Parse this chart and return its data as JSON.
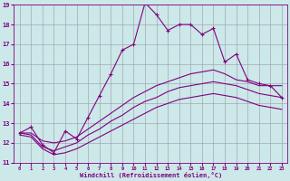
{
  "xlabel": "Windchill (Refroidissement éolien,°C)",
  "background_color": "#cce8e8",
  "line_color": "#800080",
  "grid_color": "#9999aa",
  "xlim": [
    -0.5,
    23.5
  ],
  "ylim": [
    11,
    19
  ],
  "yticks": [
    11,
    12,
    13,
    14,
    15,
    16,
    17,
    18,
    19
  ],
  "xticks": [
    0,
    1,
    2,
    3,
    4,
    5,
    6,
    7,
    8,
    9,
    10,
    11,
    12,
    13,
    14,
    15,
    16,
    17,
    18,
    19,
    20,
    21,
    22,
    23
  ],
  "line1_x": [
    0,
    1,
    2,
    3,
    4,
    5,
    6,
    7,
    8,
    9,
    10,
    11,
    12,
    13,
    14,
    15,
    16,
    17,
    18,
    19,
    20,
    21,
    22,
    23
  ],
  "line1_y": [
    12.5,
    12.8,
    11.9,
    11.5,
    12.6,
    12.2,
    13.3,
    14.4,
    15.5,
    16.7,
    17.0,
    19.1,
    18.5,
    17.7,
    18.0,
    18.0,
    17.5,
    17.8,
    16.1,
    16.5,
    15.2,
    15.0,
    14.9,
    14.3
  ],
  "line2_x": [
    0,
    1,
    2,
    3,
    4,
    5,
    6,
    7,
    8,
    9,
    10,
    11,
    12,
    13,
    14,
    15,
    16,
    17,
    18,
    19,
    20,
    21,
    22,
    23
  ],
  "line2_y": [
    12.5,
    12.5,
    12.1,
    12.0,
    12.1,
    12.3,
    12.7,
    13.1,
    13.5,
    13.9,
    14.3,
    14.6,
    14.9,
    15.1,
    15.3,
    15.5,
    15.6,
    15.7,
    15.5,
    15.2,
    15.1,
    14.9,
    14.9,
    14.9
  ],
  "line3_x": [
    0,
    1,
    2,
    3,
    4,
    5,
    6,
    7,
    8,
    9,
    10,
    11,
    12,
    13,
    14,
    15,
    16,
    17,
    18,
    19,
    20,
    21,
    22,
    23
  ],
  "line3_y": [
    12.5,
    12.4,
    11.8,
    11.6,
    11.8,
    12.0,
    12.4,
    12.7,
    13.1,
    13.4,
    13.8,
    14.1,
    14.3,
    14.6,
    14.8,
    14.9,
    15.0,
    15.1,
    15.0,
    14.9,
    14.7,
    14.5,
    14.4,
    14.3
  ],
  "line4_x": [
    0,
    1,
    2,
    3,
    4,
    5,
    6,
    7,
    8,
    9,
    10,
    11,
    12,
    13,
    14,
    15,
    16,
    17,
    18,
    19,
    20,
    21,
    22,
    23
  ],
  "line4_y": [
    12.4,
    12.3,
    11.7,
    11.4,
    11.5,
    11.7,
    12.0,
    12.3,
    12.6,
    12.9,
    13.2,
    13.5,
    13.8,
    14.0,
    14.2,
    14.3,
    14.4,
    14.5,
    14.4,
    14.3,
    14.1,
    13.9,
    13.8,
    13.7
  ]
}
